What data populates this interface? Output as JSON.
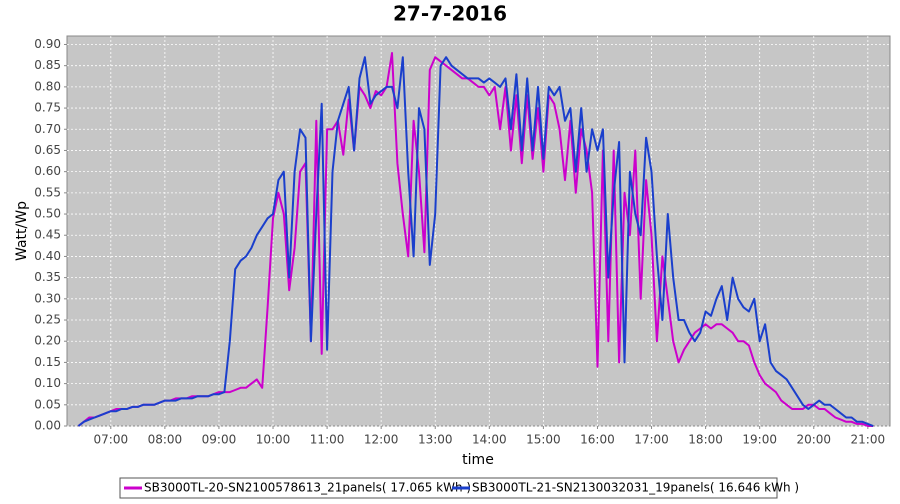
{
  "chart_data": {
    "type": "line",
    "title": "27-7-2016",
    "x_label": "time",
    "y_label": "Watt/Wp",
    "x": [
      6.4,
      6.5,
      6.6,
      6.7,
      6.8,
      6.9,
      7.0,
      7.1,
      7.2,
      7.3,
      7.4,
      7.5,
      7.6,
      7.7,
      7.8,
      7.9,
      8.0,
      8.1,
      8.2,
      8.3,
      8.4,
      8.5,
      8.6,
      8.7,
      8.8,
      8.9,
      9.0,
      9.1,
      9.2,
      9.3,
      9.4,
      9.5,
      9.6,
      9.7,
      9.8,
      9.9,
      10.0,
      10.1,
      10.2,
      10.3,
      10.4,
      10.5,
      10.6,
      10.7,
      10.8,
      10.9,
      11.0,
      11.1,
      11.2,
      11.3,
      11.4,
      11.5,
      11.6,
      11.7,
      11.8,
      11.9,
      12.0,
      12.1,
      12.2,
      12.3,
      12.4,
      12.5,
      12.6,
      12.7,
      12.8,
      12.9,
      13.0,
      13.1,
      13.2,
      13.3,
      13.4,
      13.5,
      13.6,
      13.7,
      13.8,
      13.9,
      14.0,
      14.1,
      14.2,
      14.3,
      14.4,
      14.5,
      14.6,
      14.7,
      14.8,
      14.9,
      15.0,
      15.1,
      15.2,
      15.3,
      15.4,
      15.5,
      15.6,
      15.7,
      15.8,
      15.9,
      16.0,
      16.1,
      16.2,
      16.3,
      16.4,
      16.5,
      16.6,
      16.7,
      16.8,
      16.9,
      17.0,
      17.1,
      17.2,
      17.3,
      17.4,
      17.5,
      17.6,
      17.7,
      17.8,
      17.9,
      18.0,
      18.1,
      18.2,
      18.3,
      18.4,
      18.5,
      18.6,
      18.7,
      18.8,
      18.9,
      19.0,
      19.1,
      19.2,
      19.3,
      19.4,
      19.5,
      19.6,
      19.7,
      19.8,
      19.9,
      20.0,
      20.1,
      20.2,
      20.3,
      20.4,
      20.5,
      20.6,
      20.7,
      20.8,
      20.9,
      21.0,
      21.1
    ],
    "series": [
      {
        "name": "SB3000TL-20-SN2100578613_21panels( 17.065 kWh )",
        "color": "#cc00cc",
        "values": [
          0,
          0.01,
          0.02,
          0.02,
          0.025,
          0.03,
          0.035,
          0.04,
          0.04,
          0.04,
          0.045,
          0.045,
          0.05,
          0.05,
          0.05,
          0.055,
          0.06,
          0.06,
          0.065,
          0.065,
          0.065,
          0.07,
          0.07,
          0.07,
          0.07,
          0.075,
          0.08,
          0.08,
          0.08,
          0.085,
          0.09,
          0.09,
          0.1,
          0.11,
          0.09,
          0.28,
          0.49,
          0.55,
          0.5,
          0.32,
          0.42,
          0.6,
          0.62,
          0.2,
          0.72,
          0.17,
          0.7,
          0.7,
          0.72,
          0.64,
          0.77,
          0.65,
          0.8,
          0.78,
          0.75,
          0.79,
          0.78,
          0.8,
          0.88,
          0.62,
          0.5,
          0.4,
          0.72,
          0.6,
          0.41,
          0.84,
          0.87,
          0.86,
          0.85,
          0.84,
          0.83,
          0.82,
          0.82,
          0.81,
          0.8,
          0.8,
          0.78,
          0.8,
          0.7,
          0.8,
          0.65,
          0.78,
          0.62,
          0.78,
          0.63,
          0.75,
          0.6,
          0.78,
          0.76,
          0.7,
          0.58,
          0.72,
          0.55,
          0.7,
          0.65,
          0.55,
          0.14,
          0.65,
          0.2,
          0.65,
          0.15,
          0.55,
          0.45,
          0.65,
          0.3,
          0.58,
          0.45,
          0.2,
          0.4,
          0.3,
          0.2,
          0.15,
          0.18,
          0.2,
          0.22,
          0.23,
          0.24,
          0.23,
          0.24,
          0.24,
          0.23,
          0.22,
          0.2,
          0.2,
          0.19,
          0.15,
          0.12,
          0.1,
          0.09,
          0.08,
          0.06,
          0.05,
          0.04,
          0.04,
          0.04,
          0.05,
          0.05,
          0.04,
          0.04,
          0.03,
          0.02,
          0.015,
          0.01,
          0.01,
          0.005,
          0.005,
          0,
          0
        ]
      },
      {
        "name": "SB3000TL-21-SN2130032031_19panels( 16.646 kWh )",
        "color": "#1a3fcc",
        "values": [
          0,
          0.01,
          0.015,
          0.02,
          0.025,
          0.03,
          0.035,
          0.035,
          0.04,
          0.04,
          0.045,
          0.045,
          0.05,
          0.05,
          0.05,
          0.055,
          0.06,
          0.06,
          0.06,
          0.065,
          0.065,
          0.065,
          0.07,
          0.07,
          0.07,
          0.075,
          0.075,
          0.08,
          0.2,
          0.37,
          0.39,
          0.4,
          0.42,
          0.45,
          0.47,
          0.49,
          0.5,
          0.58,
          0.6,
          0.35,
          0.6,
          0.7,
          0.68,
          0.2,
          0.5,
          0.76,
          0.18,
          0.6,
          0.72,
          0.76,
          0.8,
          0.65,
          0.82,
          0.87,
          0.76,
          0.78,
          0.79,
          0.8,
          0.8,
          0.75,
          0.87,
          0.6,
          0.4,
          0.75,
          0.7,
          0.38,
          0.5,
          0.85,
          0.87,
          0.85,
          0.84,
          0.83,
          0.82,
          0.82,
          0.82,
          0.81,
          0.82,
          0.81,
          0.8,
          0.82,
          0.7,
          0.83,
          0.65,
          0.82,
          0.65,
          0.8,
          0.63,
          0.8,
          0.78,
          0.8,
          0.72,
          0.75,
          0.6,
          0.75,
          0.6,
          0.7,
          0.65,
          0.7,
          0.35,
          0.55,
          0.67,
          0.15,
          0.6,
          0.5,
          0.45,
          0.68,
          0.6,
          0.4,
          0.25,
          0.5,
          0.35,
          0.25,
          0.25,
          0.22,
          0.2,
          0.22,
          0.27,
          0.26,
          0.3,
          0.33,
          0.25,
          0.35,
          0.3,
          0.28,
          0.27,
          0.3,
          0.2,
          0.24,
          0.15,
          0.13,
          0.12,
          0.11,
          0.09,
          0.07,
          0.05,
          0.04,
          0.05,
          0.06,
          0.05,
          0.05,
          0.04,
          0.03,
          0.02,
          0.02,
          0.01,
          0.01,
          0.005,
          0
        ]
      }
    ],
    "xlim": [
      6.19,
      21.41
    ],
    "xticks": [
      {
        "value": 7,
        "label": "07:00"
      },
      {
        "value": 8,
        "label": "08:00"
      },
      {
        "value": 9,
        "label": "09:00"
      },
      {
        "value": 10,
        "label": "10:00"
      },
      {
        "value": 11,
        "label": "11:00"
      },
      {
        "value": 12,
        "label": "12:00"
      },
      {
        "value": 13,
        "label": "13:00"
      },
      {
        "value": 14,
        "label": "14:00"
      },
      {
        "value": 15,
        "label": "15:00"
      },
      {
        "value": 16,
        "label": "16:00"
      },
      {
        "value": 17,
        "label": "17:00"
      },
      {
        "value": 18,
        "label": "18:00"
      },
      {
        "value": 19,
        "label": "19:00"
      },
      {
        "value": 20,
        "label": "20:00"
      },
      {
        "value": 21,
        "label": "21:00"
      }
    ],
    "ylim": [
      0,
      0.92
    ],
    "yticks": [
      {
        "value": 0,
        "label": "0.00"
      },
      {
        "value": 0.05,
        "label": "0.05"
      },
      {
        "value": 0.1,
        "label": "0.10"
      },
      {
        "value": 0.15,
        "label": "0.15"
      },
      {
        "value": 0.2,
        "label": "0.20"
      },
      {
        "value": 0.25,
        "label": "0.25"
      },
      {
        "value": 0.3,
        "label": "0.30"
      },
      {
        "value": 0.35,
        "label": "0.35"
      },
      {
        "value": 0.4,
        "label": "0.40"
      },
      {
        "value": 0.45,
        "label": "0.45"
      },
      {
        "value": 0.5,
        "label": "0.50"
      },
      {
        "value": 0.55,
        "label": "0.55"
      },
      {
        "value": 0.6,
        "label": "0.60"
      },
      {
        "value": 0.65,
        "label": "0.65"
      },
      {
        "value": 0.7,
        "label": "0.70"
      },
      {
        "value": 0.75,
        "label": "0.75"
      },
      {
        "value": 0.8,
        "label": "0.80"
      },
      {
        "value": 0.85,
        "label": "0.85"
      },
      {
        "value": 0.9,
        "label": "0.90"
      }
    ],
    "grid": true,
    "legend": "bottom"
  }
}
